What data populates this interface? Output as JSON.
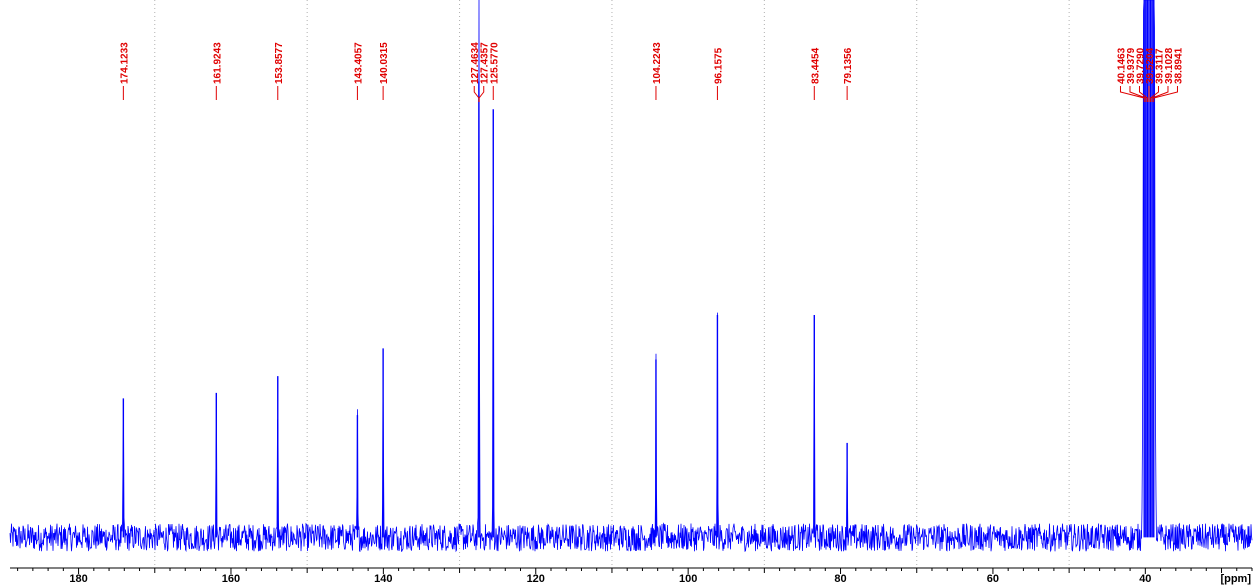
{
  "chart_data": {
    "type": "line",
    "xlabel": "[ppm]",
    "x_reversed": true,
    "xlim": [
      189,
      26
    ],
    "ylim": [
      0,
      1
    ],
    "grid": "vertical-dotted",
    "colors": {
      "spectrum": "#0000ff",
      "labels": "#e00000",
      "axis": "#000000",
      "grid": "#b0b0b0"
    },
    "x_ticks": [
      180,
      160,
      140,
      120,
      100,
      80,
      60,
      40
    ],
    "x_tick_labels": [
      "180",
      "160",
      "140",
      "120",
      "100",
      "80",
      "60",
      "40"
    ],
    "baseline": 0.055,
    "noise_amplitude": 0.025,
    "peaks": [
      {
        "ppm": 174.1233,
        "label": "174.1233",
        "height": 0.25
      },
      {
        "ppm": 161.9243,
        "label": "161.9243",
        "height": 0.26
      },
      {
        "ppm": 153.8577,
        "label": "153.8577",
        "height": 0.29
      },
      {
        "ppm": 143.4057,
        "label": "143.4057",
        "height": 0.22
      },
      {
        "ppm": 140.0315,
        "label": "140.0315",
        "height": 0.34
      },
      {
        "ppm": 127.4634,
        "label": "127.4634",
        "height": 0.82
      },
      {
        "ppm": 127.4357,
        "label": "127.4357",
        "height": 0.48
      },
      {
        "ppm": 125.577,
        "label": "125.5770",
        "height": 0.77
      },
      {
        "ppm": 104.2243,
        "label": "104.2243",
        "height": 0.32
      },
      {
        "ppm": 96.1575,
        "label": "96.1575",
        "height": 0.4
      },
      {
        "ppm": 83.4454,
        "label": "83.4454",
        "height": 0.4
      },
      {
        "ppm": 79.1356,
        "label": "79.1356",
        "height": 0.17
      },
      {
        "ppm": 40.1463,
        "label": "40.1463",
        "height": 1.2
      },
      {
        "ppm": 39.9379,
        "label": "39.9379",
        "height": 1.2
      },
      {
        "ppm": 39.729,
        "label": "39.7290",
        "height": 1.2
      },
      {
        "ppm": 39.5204,
        "label": "39.5204",
        "height": 1.2
      },
      {
        "ppm": 39.3117,
        "label": "39.3117",
        "height": 1.2
      },
      {
        "ppm": 39.1028,
        "label": "39.1028",
        "height": 1.2
      },
      {
        "ppm": 38.8941,
        "label": "38.8941",
        "height": 1.2
      }
    ]
  }
}
